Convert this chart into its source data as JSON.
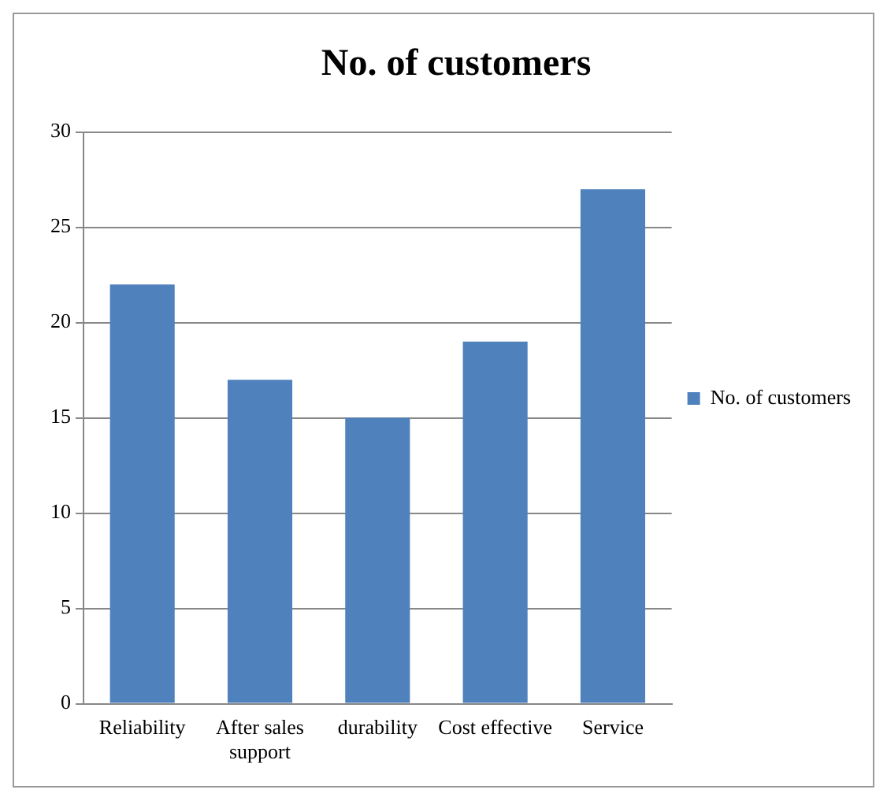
{
  "chart_data": {
    "type": "bar",
    "title": "No. of customers",
    "categories": [
      "Reliability",
      "After sales support",
      "durability",
      "Cost effective",
      "Service"
    ],
    "series": [
      {
        "name": "No. of customers",
        "color": "#4f81bd",
        "values": [
          22,
          17,
          15,
          19,
          27
        ]
      }
    ],
    "ylim": [
      0,
      30
    ],
    "yticks": [
      0,
      5,
      10,
      15,
      20,
      25,
      30
    ],
    "grid": "y",
    "legend": "right"
  }
}
